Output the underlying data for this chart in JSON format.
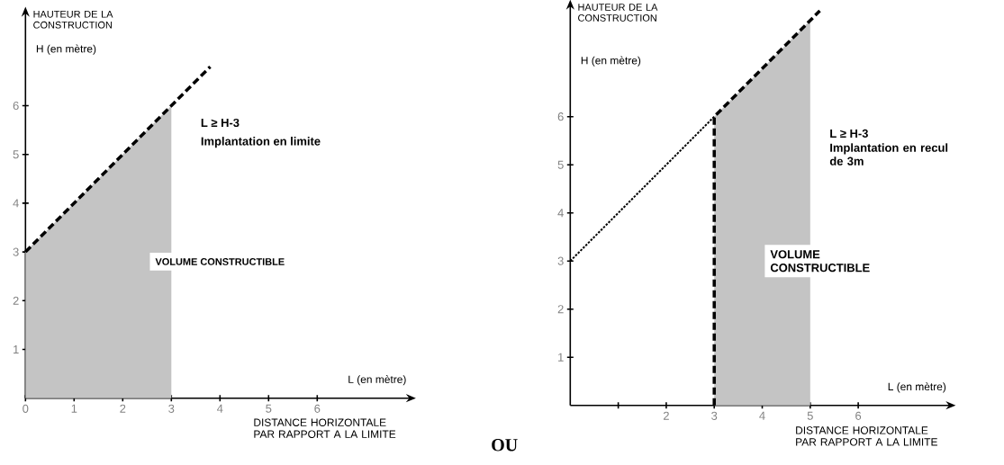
{
  "chart_data": [
    {
      "type": "line",
      "ylabel": "HAUTEUR DE LA CONSTRUCTION",
      "xlabel": "DISTANCE HORIZONTALE PAR RAPPORT A LA LIMITE",
      "xlim": [
        0,
        7.9
      ],
      "ylim": [
        0,
        7.9
      ],
      "xticks": [
        0,
        1,
        2,
        3,
        4,
        5,
        6
      ],
      "yticks": [
        1,
        2,
        3,
        4,
        5,
        6
      ],
      "marker": "none",
      "series": [
        {
          "type": "area",
          "color": "#c4c4c4",
          "x": [
            0,
            3
          ],
          "values": [
            3,
            6
          ]
        },
        {
          "line_style": "dashed",
          "color": "#000000",
          "x": [
            0,
            3.8
          ],
          "values": [
            3,
            6.8
          ]
        }
      ],
      "annotations": [
        "H (en mètre)",
        "L (en mètre)",
        "L ≥ H-3",
        "Implantation en limite",
        "VOLUME CONSTRUCTIBLE",
        "OU"
      ]
    },
    {
      "type": "line",
      "ylabel": "HAUTEUR DE LA CONSTRUCTION",
      "xlabel": "DISTANCE HORIZONTALE PAR RAPPORT A LA LIMITE",
      "xlim": [
        0,
        7.9
      ],
      "ylim": [
        0,
        8.3
      ],
      "xticks": [
        {
          "value": 1,
          "label": null
        },
        2,
        3,
        4,
        5,
        6
      ],
      "yticks": [
        1,
        2,
        3,
        4,
        5,
        6
      ],
      "marker": "none",
      "series": [
        {
          "type": "area",
          "color": "#c4c4c4",
          "x": [
            3,
            5
          ],
          "values": [
            6,
            8
          ]
        },
        {
          "line_style": "dotted",
          "color": "#000000",
          "x": [
            0,
            3
          ],
          "values": [
            3,
            6
          ]
        },
        {
          "line_style": "dashed",
          "color": "#000000",
          "x": [
            3,
            3,
            5.2
          ],
          "values": [
            0,
            6,
            8.2
          ]
        }
      ],
      "annotations": [
        "H (en mètre)",
        "L (en mètre)",
        "L ≥ H-3",
        "Implantation en recul de 3m",
        "VOLUME CONSTRUCTIBLE"
      ]
    }
  ]
}
